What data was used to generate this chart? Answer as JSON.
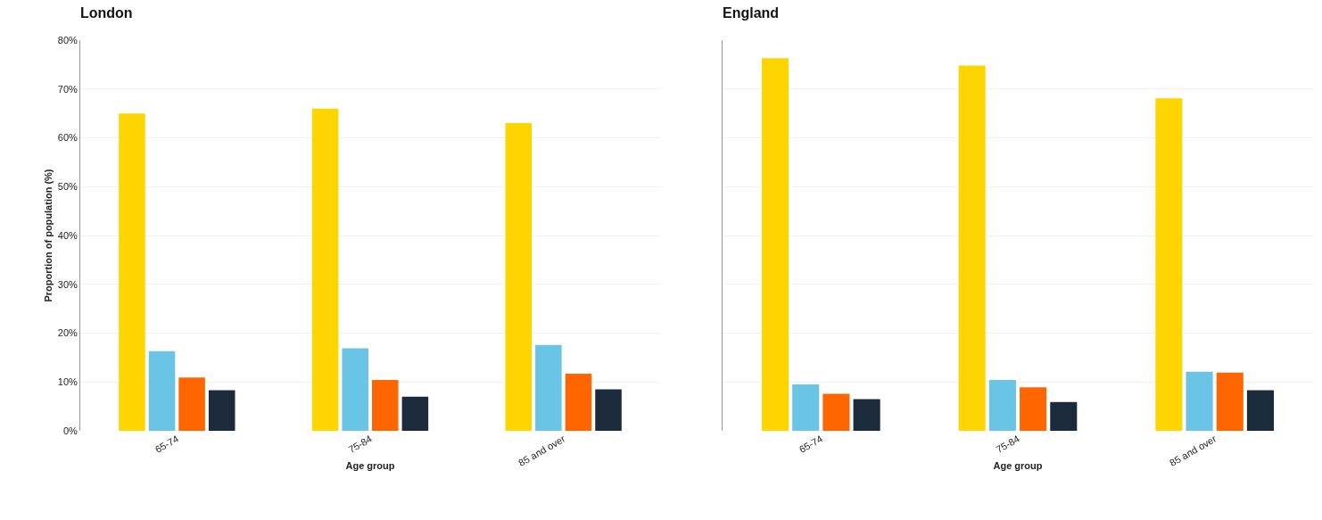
{
  "chart_data": [
    {
      "type": "bar",
      "title": "London",
      "xlabel": "Age group",
      "ylabel": "Proportion of population (%)",
      "categories": [
        "65-74",
        "75-84",
        "85 and over"
      ],
      "series": [
        {
          "color": "#ffd500",
          "values": [
            65,
            66,
            63
          ]
        },
        {
          "color": "#6ac4e6",
          "values": [
            16.3,
            16.9,
            17.6
          ]
        },
        {
          "color": "#ff6600",
          "values": [
            10.9,
            10.4,
            11.7
          ]
        },
        {
          "color": "#1c2b3c",
          "values": [
            8.3,
            7.0,
            8.5
          ]
        }
      ],
      "ylim": [
        0,
        80
      ],
      "yticks": [
        {
          "value": 0,
          "label": "0%"
        },
        {
          "value": 10,
          "label": "10%"
        },
        {
          "value": 20,
          "label": "20%"
        },
        {
          "value": 30,
          "label": "30%"
        },
        {
          "value": 40,
          "label": "40%"
        },
        {
          "value": 50,
          "label": "50%"
        },
        {
          "value": 60,
          "label": "60%"
        },
        {
          "value": 70,
          "label": "70%"
        },
        {
          "value": 80,
          "label": "80%"
        }
      ],
      "grid": "y"
    },
    {
      "type": "bar",
      "title": "England",
      "xlabel": "Age group",
      "categories": [
        "65-74",
        "75-84",
        "85 and over"
      ],
      "series": [
        {
          "color": "#ffd500",
          "values": [
            76.3,
            74.8,
            68.1
          ]
        },
        {
          "color": "#6ac4e6",
          "values": [
            9.5,
            10.4,
            12.1
          ]
        },
        {
          "color": "#ff6600",
          "values": [
            7.6,
            8.9,
            11.9
          ]
        },
        {
          "color": "#1c2b3c",
          "values": [
            6.5,
            5.9,
            8.3
          ]
        }
      ],
      "ylim": [
        0,
        80
      ],
      "yticks": [
        0,
        10,
        20,
        30,
        40,
        50,
        60,
        70,
        80
      ],
      "grid": "y",
      "tick_labels": "x"
    }
  ]
}
